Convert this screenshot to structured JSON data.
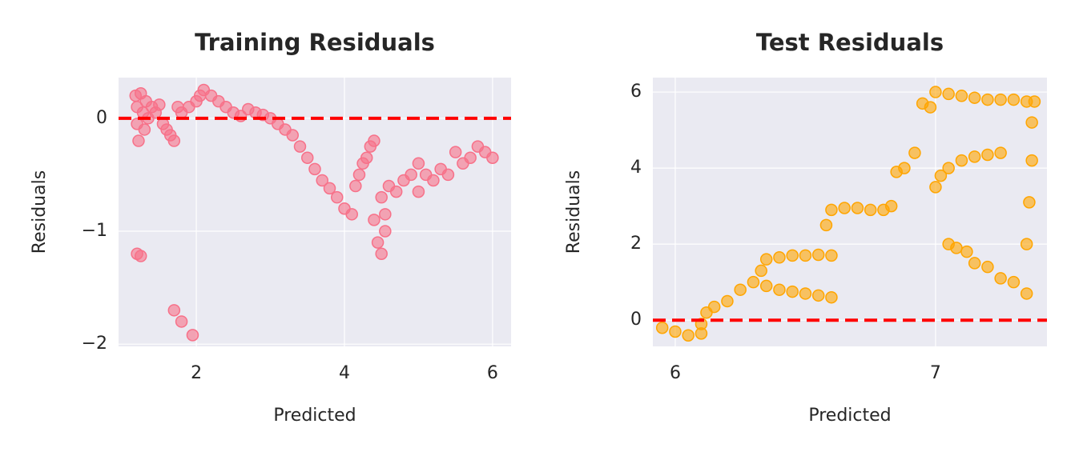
{
  "chart_data": [
    {
      "type": "scatter",
      "title": "Training Residuals",
      "x_label": "Predicted",
      "y_label": "Residuals",
      "color": "#f77189",
      "reference_line": 0,
      "reference_color": "red",
      "grid": true,
      "xlim": [
        0.95,
        6.25
      ],
      "ylim": [
        -2.02,
        0.36
      ],
      "xticks": [
        2,
        4,
        6
      ],
      "yticks": [
        {
          "value": -2,
          "label": "−2"
        },
        {
          "value": -1,
          "label": "−1"
        },
        0
      ],
      "x": [
        1.18,
        1.2,
        1.2,
        1.22,
        1.25,
        1.28,
        1.3,
        1.32,
        1.35,
        1.4,
        1.45,
        1.5,
        1.55,
        1.6,
        1.65,
        1.7,
        1.75,
        1.8,
        1.9,
        2.0,
        2.05,
        2.1,
        2.2,
        2.3,
        2.4,
        2.5,
        2.6,
        2.7,
        2.8,
        2.9,
        3.0,
        3.1,
        3.2,
        3.3,
        3.4,
        3.5,
        3.6,
        3.7,
        3.8,
        3.9,
        4.0,
        4.1,
        4.15,
        4.2,
        4.25,
        4.3,
        4.35,
        4.4,
        4.4,
        4.45,
        4.5,
        4.5,
        4.6,
        4.7,
        4.8,
        4.9,
        5.0,
        5.0,
        5.1,
        5.2,
        5.3,
        5.4,
        5.5,
        5.6,
        5.7,
        5.8,
        5.9,
        6.0,
        1.2,
        1.25,
        1.7,
        1.8,
        1.95,
        4.55,
        4.55
      ],
      "values": [
        0.2,
        0.1,
        -0.05,
        -0.2,
        0.22,
        0.05,
        -0.1,
        0.15,
        0.0,
        0.1,
        0.05,
        0.12,
        -0.05,
        -0.1,
        -0.15,
        -0.2,
        0.1,
        0.05,
        0.1,
        0.15,
        0.2,
        0.25,
        0.2,
        0.15,
        0.1,
        0.05,
        0.02,
        0.08,
        0.05,
        0.03,
        0.0,
        -0.05,
        -0.1,
        -0.15,
        -0.25,
        -0.35,
        -0.45,
        -0.55,
        -0.62,
        -0.7,
        -0.8,
        -0.85,
        -0.6,
        -0.5,
        -0.4,
        -0.35,
        -0.25,
        -0.2,
        -0.9,
        -1.1,
        -1.2,
        -0.7,
        -0.6,
        -0.65,
        -0.55,
        -0.5,
        -0.4,
        -0.65,
        -0.5,
        -0.55,
        -0.45,
        -0.5,
        -0.3,
        -0.4,
        -0.35,
        -0.25,
        -0.3,
        -0.35,
        -1.2,
        -1.22,
        -1.7,
        -1.8,
        -1.92,
        -1.0,
        -0.85
      ]
    },
    {
      "type": "scatter",
      "title": "Test Residuals",
      "x_label": "Predicted",
      "y_label": "Residuals",
      "color": "orange",
      "reference_line": 0,
      "reference_color": "red",
      "grid": true,
      "xlim": [
        5.914,
        7.428
      ],
      "ylim": [
        -0.69,
        6.38
      ],
      "xticks": [
        6,
        7
      ],
      "yticks": [
        0,
        2,
        4,
        6
      ],
      "x": [
        5.95,
        6.0,
        6.05,
        6.1,
        6.1,
        6.12,
        6.15,
        6.2,
        6.25,
        6.3,
        6.33,
        6.35,
        6.4,
        6.45,
        6.5,
        6.55,
        6.6,
        6.35,
        6.4,
        6.45,
        6.5,
        6.55,
        6.6,
        6.58,
        6.6,
        6.65,
        6.7,
        6.75,
        6.8,
        6.83,
        6.85,
        6.88,
        6.92,
        6.95,
        6.98,
        7.0,
        7.05,
        7.1,
        7.15,
        7.2,
        7.25,
        7.3,
        7.35,
        7.38,
        7.0,
        7.02,
        7.05,
        7.1,
        7.15,
        7.2,
        7.25,
        7.05,
        7.08,
        7.12,
        7.15,
        7.2,
        7.25,
        7.3,
        7.35,
        7.35,
        7.36,
        7.37,
        7.37
      ],
      "values": [
        -0.2,
        -0.3,
        -0.4,
        -0.35,
        -0.1,
        0.2,
        0.35,
        0.5,
        0.8,
        1.0,
        1.3,
        1.6,
        1.65,
        1.7,
        1.7,
        1.72,
        1.7,
        0.9,
        0.8,
        0.75,
        0.7,
        0.65,
        0.6,
        2.5,
        2.9,
        2.95,
        2.95,
        2.9,
        2.9,
        3.0,
        3.9,
        4.0,
        4.4,
        5.7,
        5.6,
        6.0,
        5.95,
        5.9,
        5.85,
        5.8,
        5.8,
        5.8,
        5.75,
        5.75,
        3.5,
        3.8,
        4.0,
        4.2,
        4.3,
        4.35,
        4.4,
        2.0,
        1.9,
        1.8,
        1.5,
        1.4,
        1.1,
        1.0,
        0.7,
        2.0,
        3.1,
        4.2,
        5.2
      ]
    }
  ]
}
